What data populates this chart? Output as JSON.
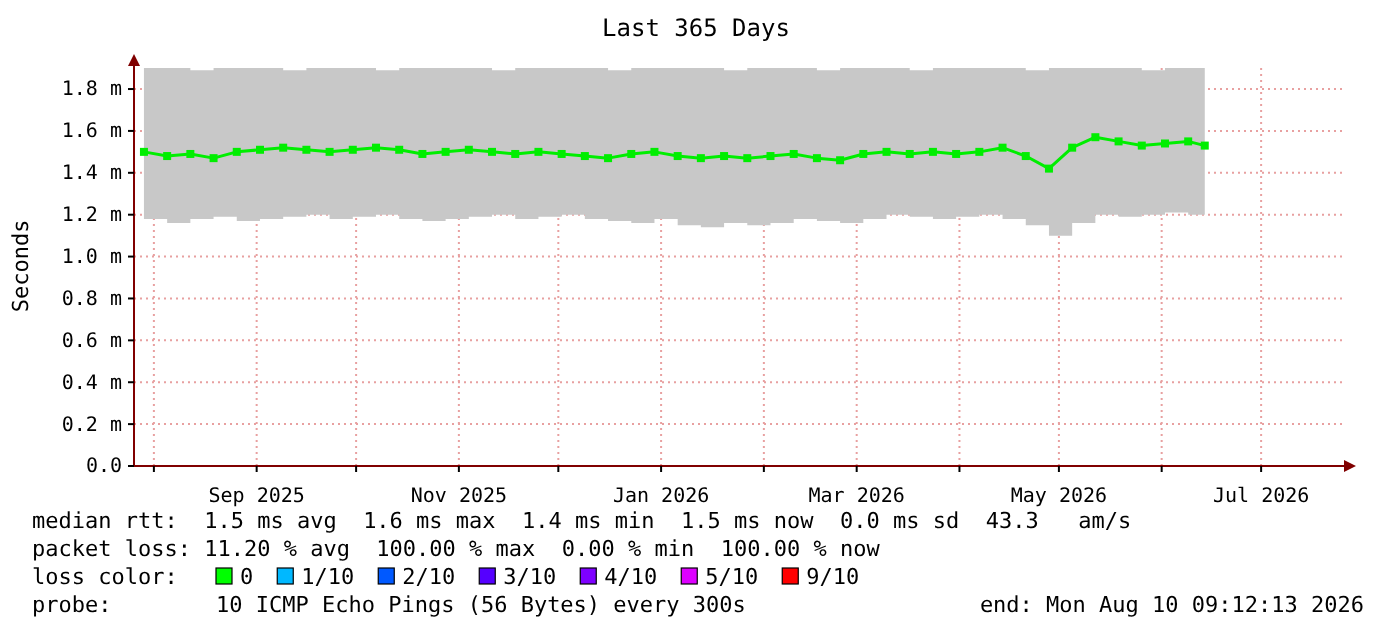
{
  "chart_data": {
    "type": "line",
    "title": "Last 365 Days",
    "ylabel": "Seconds",
    "x": [
      "2025-07-29",
      "2025-08-05",
      "2025-08-12",
      "2025-08-19",
      "2025-08-26",
      "2025-09-02",
      "2025-09-09",
      "2025-09-16",
      "2025-09-23",
      "2025-09-30",
      "2025-10-07",
      "2025-10-14",
      "2025-10-21",
      "2025-10-28",
      "2025-11-04",
      "2025-11-11",
      "2025-11-18",
      "2025-11-25",
      "2025-12-02",
      "2025-12-09",
      "2025-12-16",
      "2025-12-23",
      "2025-12-30",
      "2026-01-06",
      "2026-01-13",
      "2026-01-20",
      "2026-01-27",
      "2026-02-03",
      "2026-02-10",
      "2026-02-17",
      "2026-02-24",
      "2026-03-03",
      "2026-03-10",
      "2026-03-17",
      "2026-03-24",
      "2026-03-31",
      "2026-04-07",
      "2026-04-14",
      "2026-04-21",
      "2026-04-28",
      "2026-05-05",
      "2026-05-12",
      "2026-05-19",
      "2026-05-26",
      "2026-06-02",
      "2026-06-09",
      "2026-06-14"
    ],
    "series": [
      {
        "color": "#00ee00",
        "values": [
          1.5,
          1.48,
          1.49,
          1.47,
          1.5,
          1.51,
          1.52,
          1.51,
          1.5,
          1.51,
          1.52,
          1.51,
          1.49,
          1.5,
          1.51,
          1.5,
          1.49,
          1.5,
          1.49,
          1.48,
          1.47,
          1.49,
          1.5,
          1.48,
          1.47,
          1.48,
          1.47,
          1.48,
          1.49,
          1.47,
          1.46,
          1.49,
          1.5,
          1.49,
          1.5,
          1.49,
          1.5,
          1.52,
          1.48,
          1.42,
          1.52,
          1.57,
          1.55,
          1.53,
          1.54,
          1.55,
          1.53
        ],
        "lower": [
          1.18,
          1.16,
          1.18,
          1.19,
          1.17,
          1.18,
          1.19,
          1.2,
          1.18,
          1.19,
          1.2,
          1.18,
          1.17,
          1.18,
          1.19,
          1.2,
          1.18,
          1.19,
          1.2,
          1.18,
          1.17,
          1.16,
          1.18,
          1.15,
          1.14,
          1.16,
          1.15,
          1.16,
          1.18,
          1.17,
          1.16,
          1.18,
          1.2,
          1.19,
          1.18,
          1.19,
          1.2,
          1.18,
          1.15,
          1.1,
          1.16,
          1.2,
          1.19,
          1.2,
          1.21,
          1.2,
          1.21
        ],
        "upper": [
          1.9,
          1.9,
          1.89,
          1.9,
          1.9,
          1.9,
          1.89,
          1.9,
          1.9,
          1.9,
          1.89,
          1.9,
          1.9,
          1.9,
          1.9,
          1.89,
          1.9,
          1.9,
          1.9,
          1.9,
          1.89,
          1.9,
          1.9,
          1.9,
          1.9,
          1.89,
          1.9,
          1.9,
          1.9,
          1.89,
          1.9,
          1.9,
          1.9,
          1.89,
          1.9,
          1.9,
          1.9,
          1.9,
          1.89,
          1.9,
          1.9,
          1.9,
          1.9,
          1.89,
          1.9,
          1.9,
          1.9
        ]
      }
    ],
    "marker": "square",
    "line_style": "solid",
    "grid": true,
    "xlim": [
      "2025-07-26",
      "2026-07-26"
    ],
    "xticks": [
      {
        "value": "2025-08-01",
        "label": null
      },
      {
        "value": "2025-09-01",
        "label": "Sep 2025"
      },
      {
        "value": "2025-10-01",
        "label": null
      },
      {
        "value": "2025-11-01",
        "label": "Nov 2025"
      },
      {
        "value": "2025-12-01",
        "label": null
      },
      {
        "value": "2026-01-01",
        "label": "Jan 2026"
      },
      {
        "value": "2026-02-01",
        "label": null
      },
      {
        "value": "2026-03-01",
        "label": "Mar 2026"
      },
      {
        "value": "2026-04-01",
        "label": null
      },
      {
        "value": "2026-05-01",
        "label": "May 2026"
      },
      {
        "value": "2026-06-01",
        "label": null
      },
      {
        "value": "2026-07-01",
        "label": "Jul 2026"
      }
    ],
    "ylim": [
      0,
      1.91
    ],
    "yticks": [
      {
        "value": 0,
        "label": "0.0"
      },
      {
        "value": 0.2,
        "label": "0.2 m"
      },
      {
        "value": 0.4,
        "label": "0.4 m"
      },
      {
        "value": 0.6,
        "label": "0.6 m"
      },
      {
        "value": 0.8,
        "label": "0.8 m"
      },
      {
        "value": 1.0,
        "label": "1.0 m"
      },
      {
        "value": 1.2,
        "label": "1.2 m"
      },
      {
        "value": 1.4,
        "label": "1.4 m"
      },
      {
        "value": 1.6,
        "label": "1.6 m"
      },
      {
        "value": 1.8,
        "label": "1.8 m"
      }
    ],
    "annotations": [
      "median rtt:  1.5 ms avg  1.6 ms max  1.4 ms min  1.5 ms now  0.0 ms sd  43.3   am/s",
      "packet loss: 11.20 % avg  100.00 % max  0.00 % min  100.00 % now",
      "loss color:",
      "0",
      "1/10",
      "2/10",
      "3/10",
      "4/10",
      "5/10",
      "9/10",
      "probe:",
      "10 ICMP Echo Pings (56 Bytes) every 300s",
      "end: Mon Aug 10 09:12:13 2026"
    ]
  }
}
